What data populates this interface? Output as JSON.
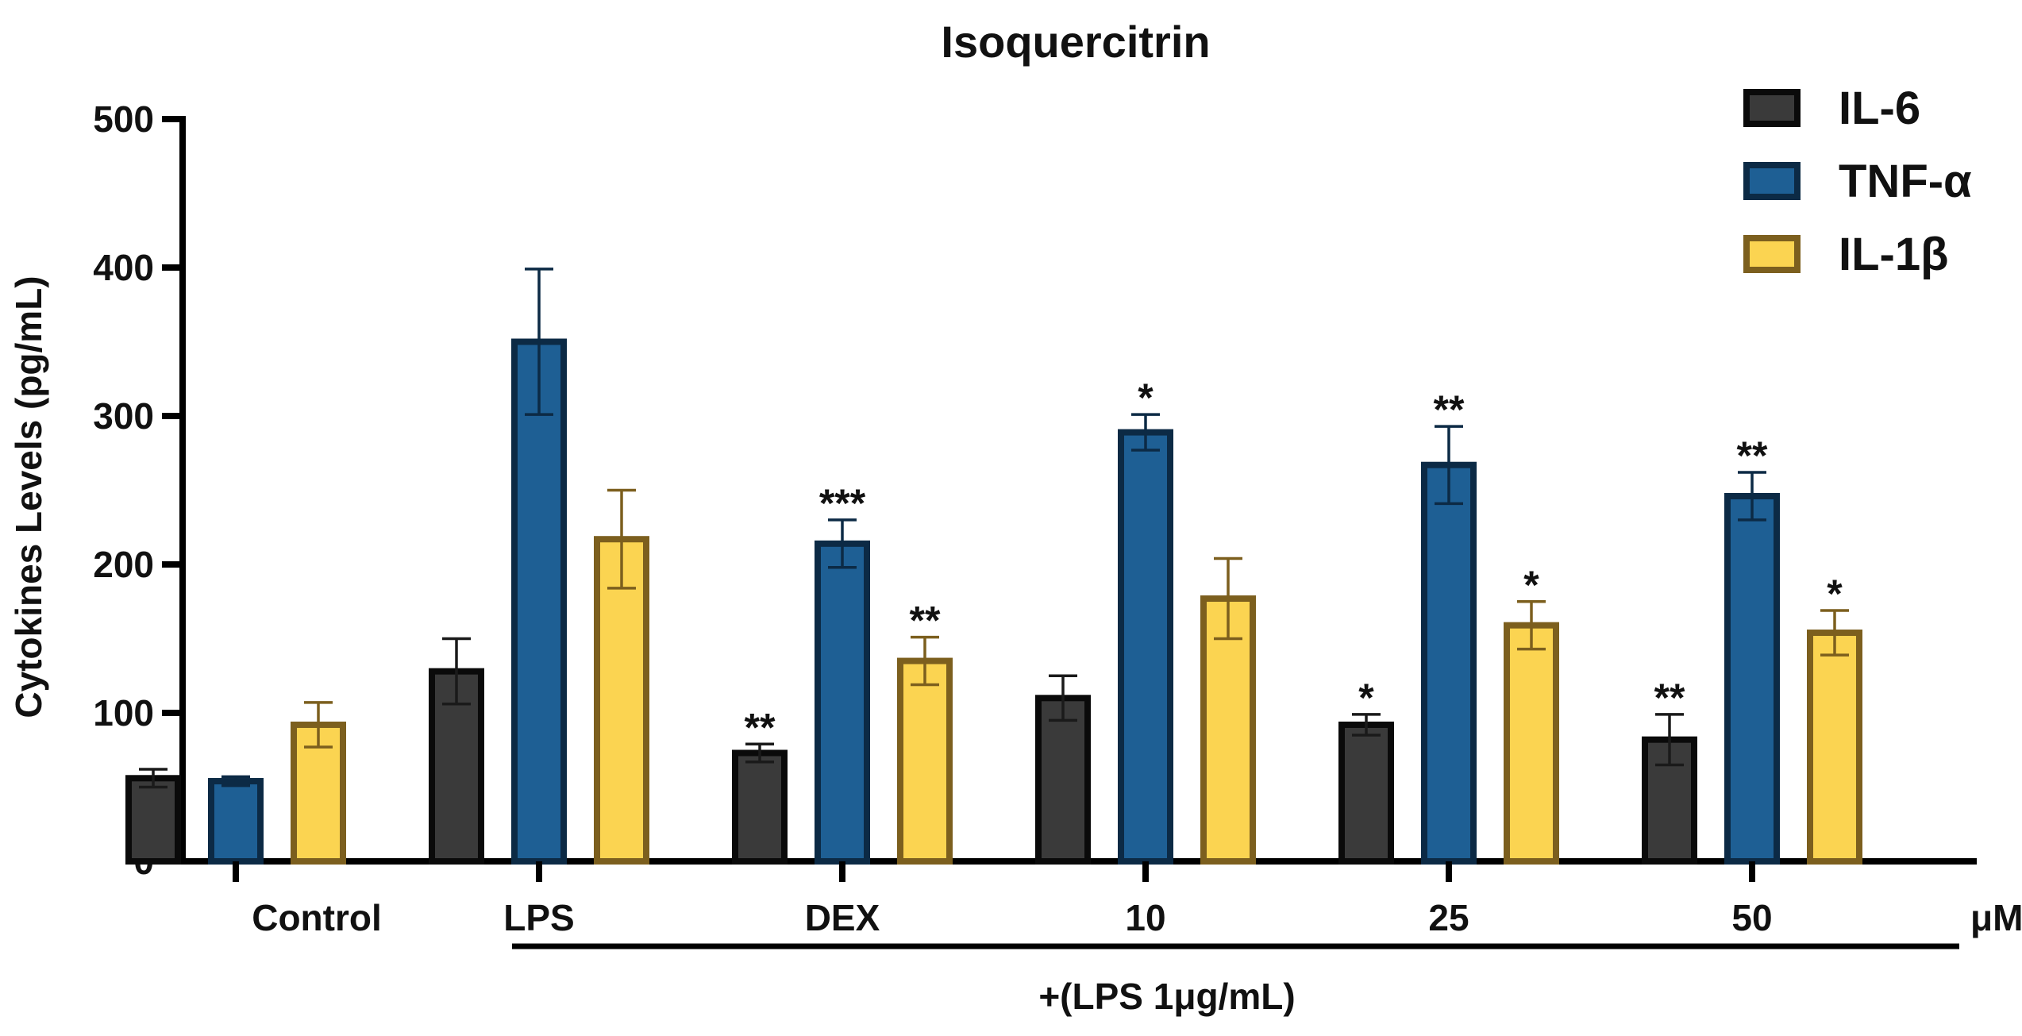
{
  "chart_data": {
    "type": "bar",
    "title": "Isoquercitrin",
    "xlabel": "+(LPS 1μg/mL)",
    "ylabel": "Cytokines Levels (pg/mL)",
    "unit_label": "μM",
    "ylim": [
      0,
      500
    ],
    "yticks": [
      0,
      100,
      200,
      300,
      400,
      500
    ],
    "categories": [
      "Control",
      "LPS",
      "DEX",
      "10",
      "25",
      "50"
    ],
    "series": [
      {
        "name": "IL-6",
        "fill": "#3a3a3a",
        "stroke": "#0a0a0a",
        "errorColor": "#1a1a1a",
        "values": [
          56,
          128,
          73,
          110,
          92,
          82
        ],
        "errors": [
          6,
          22,
          6,
          15,
          7,
          17
        ],
        "significance": [
          "",
          "",
          "**",
          "",
          "*",
          "**"
        ]
      },
      {
        "name": "TNF-α",
        "fill": "#1e5f94",
        "stroke": "#0c2a45",
        "errorColor": "#0c2a45",
        "values": [
          54,
          350,
          214,
          289,
          267,
          246
        ],
        "errors": [
          3,
          49,
          16,
          12,
          26,
          16
        ],
        "significance": [
          "",
          "",
          "***",
          "*",
          "**",
          "**"
        ]
      },
      {
        "name": "IL-1β",
        "fill": "#fbd451",
        "stroke": "#7c5f1e",
        "errorColor": "#7c5f1e",
        "values": [
          92,
          217,
          135,
          177,
          159,
          154
        ],
        "errors": [
          15,
          33,
          16,
          27,
          16,
          15
        ],
        "significance": [
          "",
          "",
          "**",
          "",
          "*",
          "*"
        ]
      }
    ],
    "legend_position": "top-right"
  }
}
